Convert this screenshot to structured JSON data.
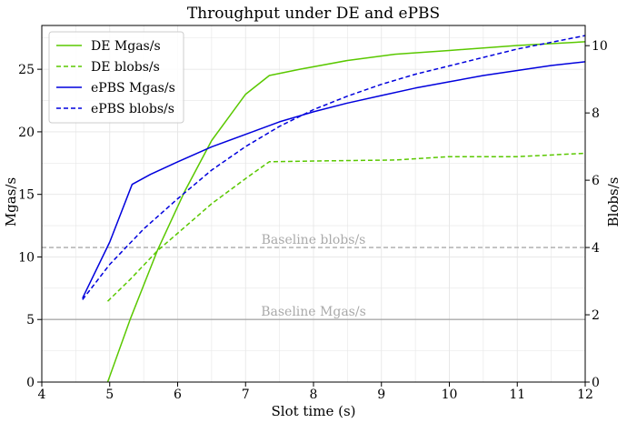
{
  "chart_data": {
    "type": "line",
    "title": "Throughput under DE and ePBS",
    "xlabel": "Slot time (s)",
    "ylabel": "Mgas/s",
    "y2label": "Blobs/s",
    "xlim": [
      4,
      12
    ],
    "ylim": [
      0,
      28.5
    ],
    "y2lim": [
      0,
      10.6
    ],
    "x_ticks": [
      4,
      5,
      6,
      7,
      8,
      9,
      10,
      11,
      12
    ],
    "y_ticks": [
      0,
      5,
      10,
      15,
      20,
      25
    ],
    "y2_ticks": [
      0,
      2,
      4,
      6,
      8,
      10
    ],
    "grid": true,
    "legend_position": "top-left",
    "series": [
      {
        "name": "DE Mgas/s",
        "axis": "left",
        "color": "#5ac800",
        "dash": "solid",
        "x": [
          4.97,
          5.3,
          5.7,
          6.1,
          6.5,
          7.0,
          7.35,
          7.8,
          8.5,
          9.2,
          10.0,
          11.0,
          12.0
        ],
        "y": [
          0.0,
          5.0,
          10.5,
          15.2,
          19.3,
          23.0,
          24.5,
          25.0,
          25.7,
          26.2,
          26.5,
          26.9,
          27.2
        ]
      },
      {
        "name": "DE blobs/s",
        "axis": "right",
        "color": "#5ac800",
        "dash": "dashed",
        "x": [
          4.97,
          5.3,
          5.7,
          6.1,
          6.5,
          7.0,
          7.35,
          8.0,
          9.2,
          10.0,
          11.0,
          12.0
        ],
        "y": [
          2.4,
          3.05,
          3.9,
          4.6,
          5.3,
          6.05,
          6.55,
          6.57,
          6.6,
          6.7,
          6.7,
          6.8
        ]
      },
      {
        "name": "ePBS Mgas/s",
        "axis": "left",
        "color": "#0000dd",
        "dash": "solid",
        "x": [
          4.6,
          5.0,
          5.33,
          5.6,
          6.0,
          6.5,
          7.0,
          7.5,
          8.0,
          8.5,
          9.0,
          9.5,
          10.0,
          10.5,
          11.0,
          11.5,
          12.0
        ],
        "y": [
          6.7,
          11.2,
          15.8,
          16.6,
          17.6,
          18.8,
          19.8,
          20.8,
          21.6,
          22.3,
          22.9,
          23.5,
          24.0,
          24.5,
          24.9,
          25.3,
          25.6
        ]
      },
      {
        "name": "ePBS blobs/s",
        "axis": "right",
        "color": "#0000dd",
        "dash": "dashed",
        "x": [
          4.6,
          5.0,
          5.5,
          6.0,
          6.5,
          7.0,
          7.5,
          8.0,
          8.5,
          9.0,
          9.5,
          10.0,
          10.5,
          11.0,
          11.5,
          12.0
        ],
        "y": [
          2.45,
          3.5,
          4.55,
          5.45,
          6.3,
          7.0,
          7.6,
          8.1,
          8.5,
          8.85,
          9.15,
          9.4,
          9.65,
          9.9,
          10.1,
          10.3
        ]
      }
    ],
    "reference_lines": [
      {
        "label": "Baseline Mgas/s",
        "axis": "left",
        "value": 5.0,
        "color": "#aaaaaa"
      },
      {
        "label": "Baseline blobs/s",
        "axis": "right",
        "value": 4.0,
        "color": "#aaaaaa",
        "dash": "dashed"
      }
    ]
  }
}
